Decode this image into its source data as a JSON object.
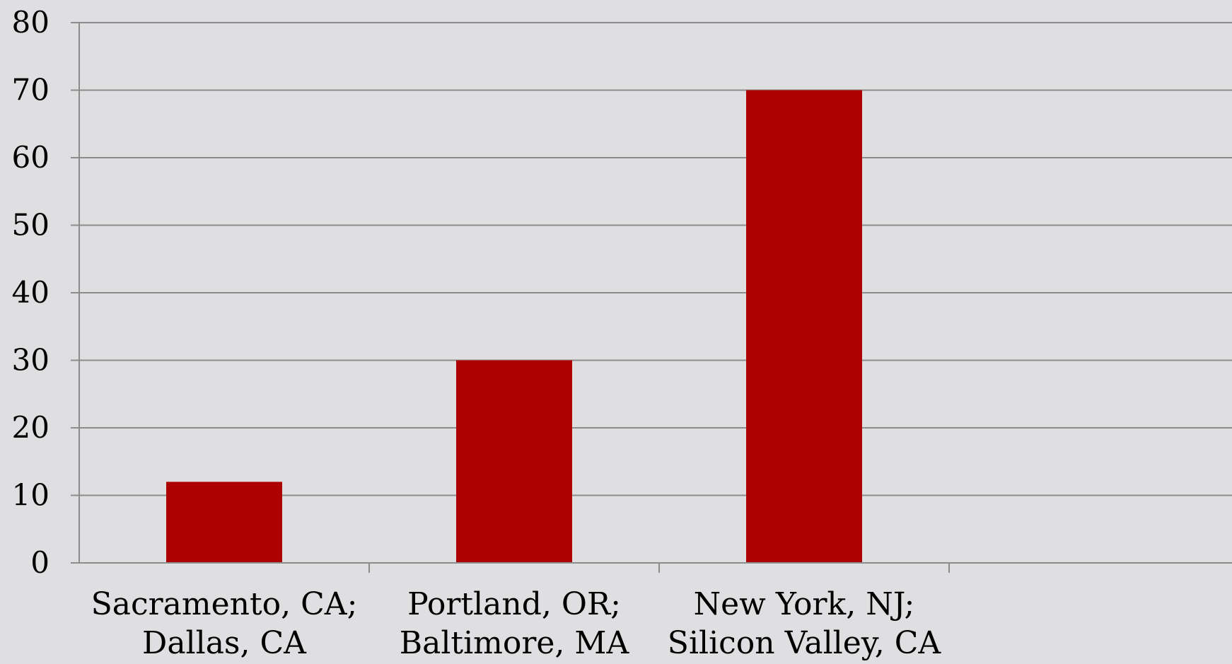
{
  "chart_data": {
    "type": "bar",
    "categories": [
      [
        "Sacramento, CA;",
        "Dallas, CA"
      ],
      [
        "Portland, OR;",
        "Baltimore, MA"
      ],
      [
        "New York, NJ;",
        "Silicon Valley, CA"
      ],
      [
        "",
        ""
      ]
    ],
    "values": [
      12,
      30,
      70,
      null
    ],
    "title": "",
    "xlabel": "",
    "ylabel": "",
    "ylim": [
      0,
      80
    ],
    "yticks": [
      "0",
      "10",
      "20",
      "30",
      "40",
      "50",
      "60",
      "70",
      "80"
    ],
    "grid": true,
    "legend": "none",
    "colors": {
      "bar": "#ad0000",
      "grid": "#8c8c8c",
      "axis": "#8c8c8c",
      "background": "#dfdfe1"
    }
  }
}
